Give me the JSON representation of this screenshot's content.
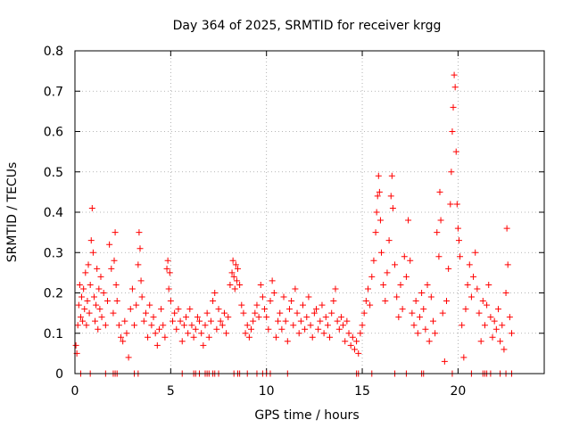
{
  "chart_data": {
    "type": "scatter",
    "title": "Day 364 of 2025, SRMTID for receiver krgg",
    "xlabel": "GPS time / hours",
    "ylabel": "SRMTID / TECUs",
    "xlim": [
      0,
      24.5
    ],
    "ylim": [
      0,
      0.8
    ],
    "xticks": [
      0,
      5,
      10,
      15,
      20
    ],
    "yticks": [
      0,
      0.1,
      0.2,
      0.3,
      0.4,
      0.5,
      0.6,
      0.7,
      0.8
    ],
    "xtick_labels": [
      "0",
      "5",
      "10",
      "15",
      "20"
    ],
    "ytick_labels": [
      "0",
      "0.1",
      "0.2",
      "0.3",
      "0.4",
      "0.5",
      "0.6",
      "0.7",
      "0.8"
    ],
    "grid": true,
    "marker": "+",
    "series": [
      {
        "name": "SRMTID",
        "color": "#ff0000",
        "points": [
          [
            0.05,
            0.07
          ],
          [
            0.1,
            0.05
          ],
          [
            0.15,
            0.12
          ],
          [
            0.2,
            0.17
          ],
          [
            0.25,
            0.22
          ],
          [
            0.3,
            0.14
          ],
          [
            0.35,
            0.19
          ],
          [
            0.4,
            0.13
          ],
          [
            0.45,
            0.21
          ],
          [
            0.5,
            0.16
          ],
          [
            0.55,
            0.25
          ],
          [
            0.6,
            0.12
          ],
          [
            0.65,
            0.18
          ],
          [
            0.7,
            0.27
          ],
          [
            0.75,
            0.15
          ],
          [
            0.8,
            0.22
          ],
          [
            0.85,
            0.33
          ],
          [
            0.9,
            0.41
          ],
          [
            0.95,
            0.3
          ],
          [
            1.0,
            0.19
          ],
          [
            1.05,
            0.13
          ],
          [
            1.1,
            0.17
          ],
          [
            1.15,
            0.26
          ],
          [
            1.2,
            0.11
          ],
          [
            1.25,
            0.21
          ],
          [
            1.3,
            0.16
          ],
          [
            1.35,
            0.24
          ],
          [
            1.4,
            0.14
          ],
          [
            1.5,
            0.2
          ],
          [
            1.6,
            0.12
          ],
          [
            1.7,
            0.18
          ],
          [
            1.8,
            0.32
          ],
          [
            1.9,
            0.26
          ],
          [
            2.0,
            0.15
          ],
          [
            2.05,
            0.28
          ],
          [
            2.1,
            0.35
          ],
          [
            2.15,
            0.22
          ],
          [
            2.2,
            0.18
          ],
          [
            2.3,
            0.12
          ],
          [
            2.4,
            0.09
          ],
          [
            2.5,
            0.08
          ],
          [
            2.6,
            0.13
          ],
          [
            2.7,
            0.1
          ],
          [
            2.8,
            0.04
          ],
          [
            2.9,
            0.16
          ],
          [
            3.0,
            0.21
          ],
          [
            3.1,
            0.12
          ],
          [
            3.2,
            0.17
          ],
          [
            3.3,
            0.27
          ],
          [
            3.35,
            0.35
          ],
          [
            3.4,
            0.31
          ],
          [
            3.45,
            0.23
          ],
          [
            3.5,
            0.19
          ],
          [
            3.6,
            0.13
          ],
          [
            3.7,
            0.15
          ],
          [
            3.8,
            0.09
          ],
          [
            3.9,
            0.17
          ],
          [
            4.0,
            0.12
          ],
          [
            4.1,
            0.14
          ],
          [
            4.2,
            0.1
          ],
          [
            4.3,
            0.07
          ],
          [
            4.4,
            0.11
          ],
          [
            4.5,
            0.16
          ],
          [
            4.6,
            0.12
          ],
          [
            4.7,
            0.09
          ],
          [
            4.8,
            0.26
          ],
          [
            4.85,
            0.28
          ],
          [
            4.9,
            0.21
          ],
          [
            4.95,
            0.25
          ],
          [
            5.0,
            0.18
          ],
          [
            5.1,
            0.13
          ],
          [
            5.2,
            0.15
          ],
          [
            5.3,
            0.11
          ],
          [
            5.4,
            0.16
          ],
          [
            5.5,
            0.13
          ],
          [
            5.6,
            0.08
          ],
          [
            5.7,
            0.12
          ],
          [
            5.8,
            0.14
          ],
          [
            5.9,
            0.1
          ],
          [
            6.0,
            0.16
          ],
          [
            6.1,
            0.12
          ],
          [
            6.2,
            0.09
          ],
          [
            6.3,
            0.11
          ],
          [
            6.4,
            0.14
          ],
          [
            6.5,
            0.13
          ],
          [
            6.6,
            0.1
          ],
          [
            6.7,
            0.07
          ],
          [
            6.8,
            0.12
          ],
          [
            6.9,
            0.15
          ],
          [
            7.0,
            0.09
          ],
          [
            7.1,
            0.13
          ],
          [
            7.2,
            0.18
          ],
          [
            7.3,
            0.2
          ],
          [
            7.4,
            0.11
          ],
          [
            7.5,
            0.16
          ],
          [
            7.6,
            0.13
          ],
          [
            7.7,
            0.12
          ],
          [
            7.8,
            0.15
          ],
          [
            7.9,
            0.1
          ],
          [
            8.0,
            0.14
          ],
          [
            8.1,
            0.22
          ],
          [
            8.2,
            0.25
          ],
          [
            8.25,
            0.28
          ],
          [
            8.3,
            0.24
          ],
          [
            8.35,
            0.21
          ],
          [
            8.4,
            0.27
          ],
          [
            8.45,
            0.23
          ],
          [
            8.5,
            0.26
          ],
          [
            8.6,
            0.22
          ],
          [
            8.7,
            0.17
          ],
          [
            8.8,
            0.15
          ],
          [
            8.9,
            0.1
          ],
          [
            9.0,
            0.12
          ],
          [
            9.1,
            0.09
          ],
          [
            9.2,
            0.11
          ],
          [
            9.3,
            0.13
          ],
          [
            9.4,
            0.15
          ],
          [
            9.5,
            0.17
          ],
          [
            9.6,
            0.14
          ],
          [
            9.7,
            0.22
          ],
          [
            9.8,
            0.19
          ],
          [
            9.9,
            0.16
          ],
          [
            10.0,
            0.14
          ],
          [
            10.1,
            0.11
          ],
          [
            10.2,
            0.18
          ],
          [
            10.3,
            0.23
          ],
          [
            10.4,
            0.2
          ],
          [
            10.5,
            0.09
          ],
          [
            10.6,
            0.13
          ],
          [
            10.7,
            0.15
          ],
          [
            10.8,
            0.11
          ],
          [
            10.9,
            0.19
          ],
          [
            11.0,
            0.13
          ],
          [
            11.1,
            0.08
          ],
          [
            11.2,
            0.16
          ],
          [
            11.3,
            0.18
          ],
          [
            11.4,
            0.12
          ],
          [
            11.5,
            0.21
          ],
          [
            11.6,
            0.15
          ],
          [
            11.7,
            0.1
          ],
          [
            11.8,
            0.13
          ],
          [
            11.9,
            0.17
          ],
          [
            12.0,
            0.11
          ],
          [
            12.1,
            0.14
          ],
          [
            12.2,
            0.19
          ],
          [
            12.3,
            0.12
          ],
          [
            12.4,
            0.09
          ],
          [
            12.5,
            0.15
          ],
          [
            12.6,
            0.16
          ],
          [
            12.7,
            0.11
          ],
          [
            12.8,
            0.13
          ],
          [
            12.9,
            0.17
          ],
          [
            13.0,
            0.1
          ],
          [
            13.1,
            0.14
          ],
          [
            13.2,
            0.12
          ],
          [
            13.3,
            0.09
          ],
          [
            13.4,
            0.15
          ],
          [
            13.5,
            0.18
          ],
          [
            13.6,
            0.21
          ],
          [
            13.7,
            0.13
          ],
          [
            13.8,
            0.11
          ],
          [
            13.9,
            0.14
          ],
          [
            14.0,
            0.12
          ],
          [
            14.1,
            0.08
          ],
          [
            14.2,
            0.13
          ],
          [
            14.3,
            0.1
          ],
          [
            14.4,
            0.07
          ],
          [
            14.5,
            0.09
          ],
          [
            14.6,
            0.06
          ],
          [
            14.7,
            0.08
          ],
          [
            14.8,
            0.05
          ],
          [
            14.9,
            0.1
          ],
          [
            15.0,
            0.12
          ],
          [
            15.1,
            0.15
          ],
          [
            15.2,
            0.18
          ],
          [
            15.3,
            0.21
          ],
          [
            15.4,
            0.17
          ],
          [
            15.5,
            0.24
          ],
          [
            15.6,
            0.28
          ],
          [
            15.7,
            0.35
          ],
          [
            15.75,
            0.4
          ],
          [
            15.8,
            0.44
          ],
          [
            15.85,
            0.49
          ],
          [
            15.9,
            0.45
          ],
          [
            15.95,
            0.38
          ],
          [
            16.0,
            0.3
          ],
          [
            16.1,
            0.22
          ],
          [
            16.2,
            0.18
          ],
          [
            16.3,
            0.25
          ],
          [
            16.4,
            0.33
          ],
          [
            16.5,
            0.44
          ],
          [
            16.55,
            0.49
          ],
          [
            16.6,
            0.41
          ],
          [
            16.7,
            0.27
          ],
          [
            16.8,
            0.19
          ],
          [
            16.9,
            0.14
          ],
          [
            17.0,
            0.22
          ],
          [
            17.1,
            0.16
          ],
          [
            17.2,
            0.29
          ],
          [
            17.3,
            0.24
          ],
          [
            17.4,
            0.38
          ],
          [
            17.5,
            0.28
          ],
          [
            17.6,
            0.15
          ],
          [
            17.7,
            0.12
          ],
          [
            17.8,
            0.18
          ],
          [
            17.9,
            0.1
          ],
          [
            18.0,
            0.14
          ],
          [
            18.1,
            0.2
          ],
          [
            18.2,
            0.16
          ],
          [
            18.3,
            0.11
          ],
          [
            18.4,
            0.22
          ],
          [
            18.5,
            0.08
          ],
          [
            18.6,
            0.19
          ],
          [
            18.7,
            0.13
          ],
          [
            18.8,
            0.1
          ],
          [
            18.9,
            0.35
          ],
          [
            19.0,
            0.29
          ],
          [
            19.05,
            0.45
          ],
          [
            19.1,
            0.38
          ],
          [
            19.2,
            0.15
          ],
          [
            19.3,
            0.03
          ],
          [
            19.4,
            0.18
          ],
          [
            19.5,
            0.26
          ],
          [
            19.6,
            0.42
          ],
          [
            19.65,
            0.5
          ],
          [
            19.7,
            0.6
          ],
          [
            19.75,
            0.66
          ],
          [
            19.8,
            0.74
          ],
          [
            19.85,
            0.71
          ],
          [
            19.9,
            0.55
          ],
          [
            19.95,
            0.42
          ],
          [
            20.0,
            0.36
          ],
          [
            20.05,
            0.33
          ],
          [
            20.1,
            0.29
          ],
          [
            20.2,
            0.12
          ],
          [
            20.3,
            0.04
          ],
          [
            20.4,
            0.16
          ],
          [
            20.5,
            0.22
          ],
          [
            20.6,
            0.27
          ],
          [
            20.7,
            0.19
          ],
          [
            20.8,
            0.24
          ],
          [
            20.9,
            0.3
          ],
          [
            21.0,
            0.21
          ],
          [
            21.1,
            0.15
          ],
          [
            21.2,
            0.08
          ],
          [
            21.3,
            0.18
          ],
          [
            21.4,
            0.12
          ],
          [
            21.5,
            0.17
          ],
          [
            21.6,
            0.22
          ],
          [
            21.7,
            0.14
          ],
          [
            21.8,
            0.09
          ],
          [
            21.9,
            0.13
          ],
          [
            22.0,
            0.11
          ],
          [
            22.1,
            0.16
          ],
          [
            22.2,
            0.08
          ],
          [
            22.3,
            0.12
          ],
          [
            22.4,
            0.06
          ],
          [
            22.5,
            0.2
          ],
          [
            22.55,
            0.36
          ],
          [
            22.6,
            0.27
          ],
          [
            22.7,
            0.14
          ],
          [
            22.8,
            0.1
          ]
        ],
        "zero_points": [
          0.3,
          0.8,
          1.6,
          2.0,
          2.1,
          2.2,
          3.1,
          3.3,
          5.6,
          6.2,
          6.3,
          6.5,
          6.8,
          6.9,
          7.0,
          7.2,
          7.3,
          7.5,
          8.3,
          8.5,
          8.6,
          9.0,
          9.5,
          9.8,
          10.0,
          10.2,
          11.1,
          14.7,
          14.8,
          15.5,
          16.7,
          17.3,
          18.1,
          18.2,
          19.7,
          20.7,
          21.3,
          21.4,
          21.5,
          21.7,
          22.2,
          22.5,
          22.8
        ]
      }
    ]
  }
}
